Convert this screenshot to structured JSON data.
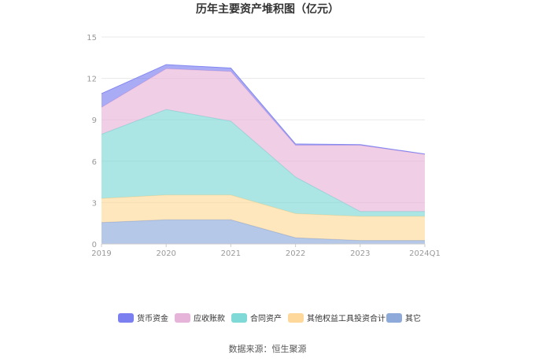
{
  "chart_data": {
    "type": "area",
    "stacked": true,
    "title": "历年主要资产堆积图（亿元）",
    "categories": [
      "2019",
      "2020",
      "2021",
      "2022",
      "2023",
      "2024Q1"
    ],
    "ylim": [
      0,
      15
    ],
    "yticks": [
      "0",
      "3",
      "6",
      "9",
      "12",
      "15"
    ],
    "grid": true,
    "legend_position": "bottom",
    "series": [
      {
        "name": "其它",
        "color": "#8eaadb",
        "values": [
          1.55,
          1.75,
          1.75,
          0.45,
          0.25,
          0.25
        ]
      },
      {
        "name": "其他权益工具投资合计",
        "color": "#fdd89a",
        "values": [
          1.75,
          1.8,
          1.8,
          1.75,
          1.75,
          1.75
        ]
      },
      {
        "name": "合同资产",
        "color": "#7fd9d6",
        "values": [
          4.65,
          6.2,
          5.35,
          2.65,
          0.35,
          0.35
        ]
      },
      {
        "name": "应收账款",
        "color": "#e6b4d8",
        "values": [
          1.95,
          2.95,
          3.6,
          2.3,
          4.8,
          4.15
        ]
      },
      {
        "name": "货币资金",
        "color": "#7b7ff0",
        "values": [
          1.0,
          0.3,
          0.25,
          0.1,
          0.05,
          0.02
        ]
      }
    ],
    "legend_order": [
      "货币资金",
      "应收账款",
      "合同资产",
      "其他权益工具投资合计",
      "其它"
    ]
  },
  "footer": {
    "source": "数据来源：恒生聚源"
  }
}
